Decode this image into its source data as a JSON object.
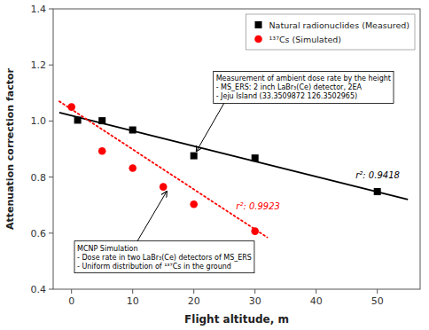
{
  "chart_data": {
    "type": "scatter",
    "xlabel": "Flight altitude, m",
    "ylabel": "Attenuation correction factor",
    "series": [
      {
        "name": "Natural radionuclides (Measured)",
        "type": "scatter",
        "color": "#000000",
        "marker": "square",
        "x": [
          1,
          5,
          10,
          20,
          30,
          50
        ],
        "values": [
          1.003,
          1.001,
          0.968,
          0.876,
          0.868,
          0.748
        ]
      },
      {
        "name": "¹³⁷Cs (Simulated)",
        "type": "scatter",
        "color": "#ff0000",
        "marker": "circle",
        "x": [
          0,
          5,
          10,
          15,
          20,
          30
        ],
        "values": [
          1.05,
          0.893,
          0.832,
          0.765,
          0.703,
          0.607
        ]
      },
      {
        "type": "line",
        "color": "#000000",
        "line_style": "solid",
        "x": [
          -2,
          55
        ],
        "values": [
          1.03,
          0.72
        ]
      },
      {
        "type": "line",
        "color": "#ff0000",
        "line_style": "dotted",
        "x": [
          -2,
          32
        ],
        "values": [
          1.07,
          0.585
        ]
      }
    ],
    "annotations": [
      {
        "text": "r²: 0.9418",
        "color": "#000000"
      },
      {
        "text": "r²: 0.9923",
        "color": "#ff0000"
      },
      {
        "text": "Measurement of ambient dose rate by the height\n- MS_ERS: 2 inch LaBr₃(Ce) detector, 2EA\n- Jeju Island (33.3509872 126.3502965)",
        "x": 20,
        "y": 0.876
      },
      {
        "text": "MCNP Simulation\n- Dose rate in two LaBr₃(Ce) detectors of MS_ERS\n- Uniform distribution of ¹³⁷Cs in the ground",
        "x": 16,
        "y": 0.765
      }
    ],
    "xlim": [
      -3,
      57
    ],
    "ylim": [
      0.4,
      1.4
    ],
    "xticks": [
      0,
      10,
      20,
      30,
      40,
      50
    ],
    "yticks": [
      0.4,
      0.6,
      0.8,
      {
        "value": 1,
        "label": "1.0"
      },
      1.2,
      1.4
    ],
    "legend": "upper right",
    "grid": false
  }
}
